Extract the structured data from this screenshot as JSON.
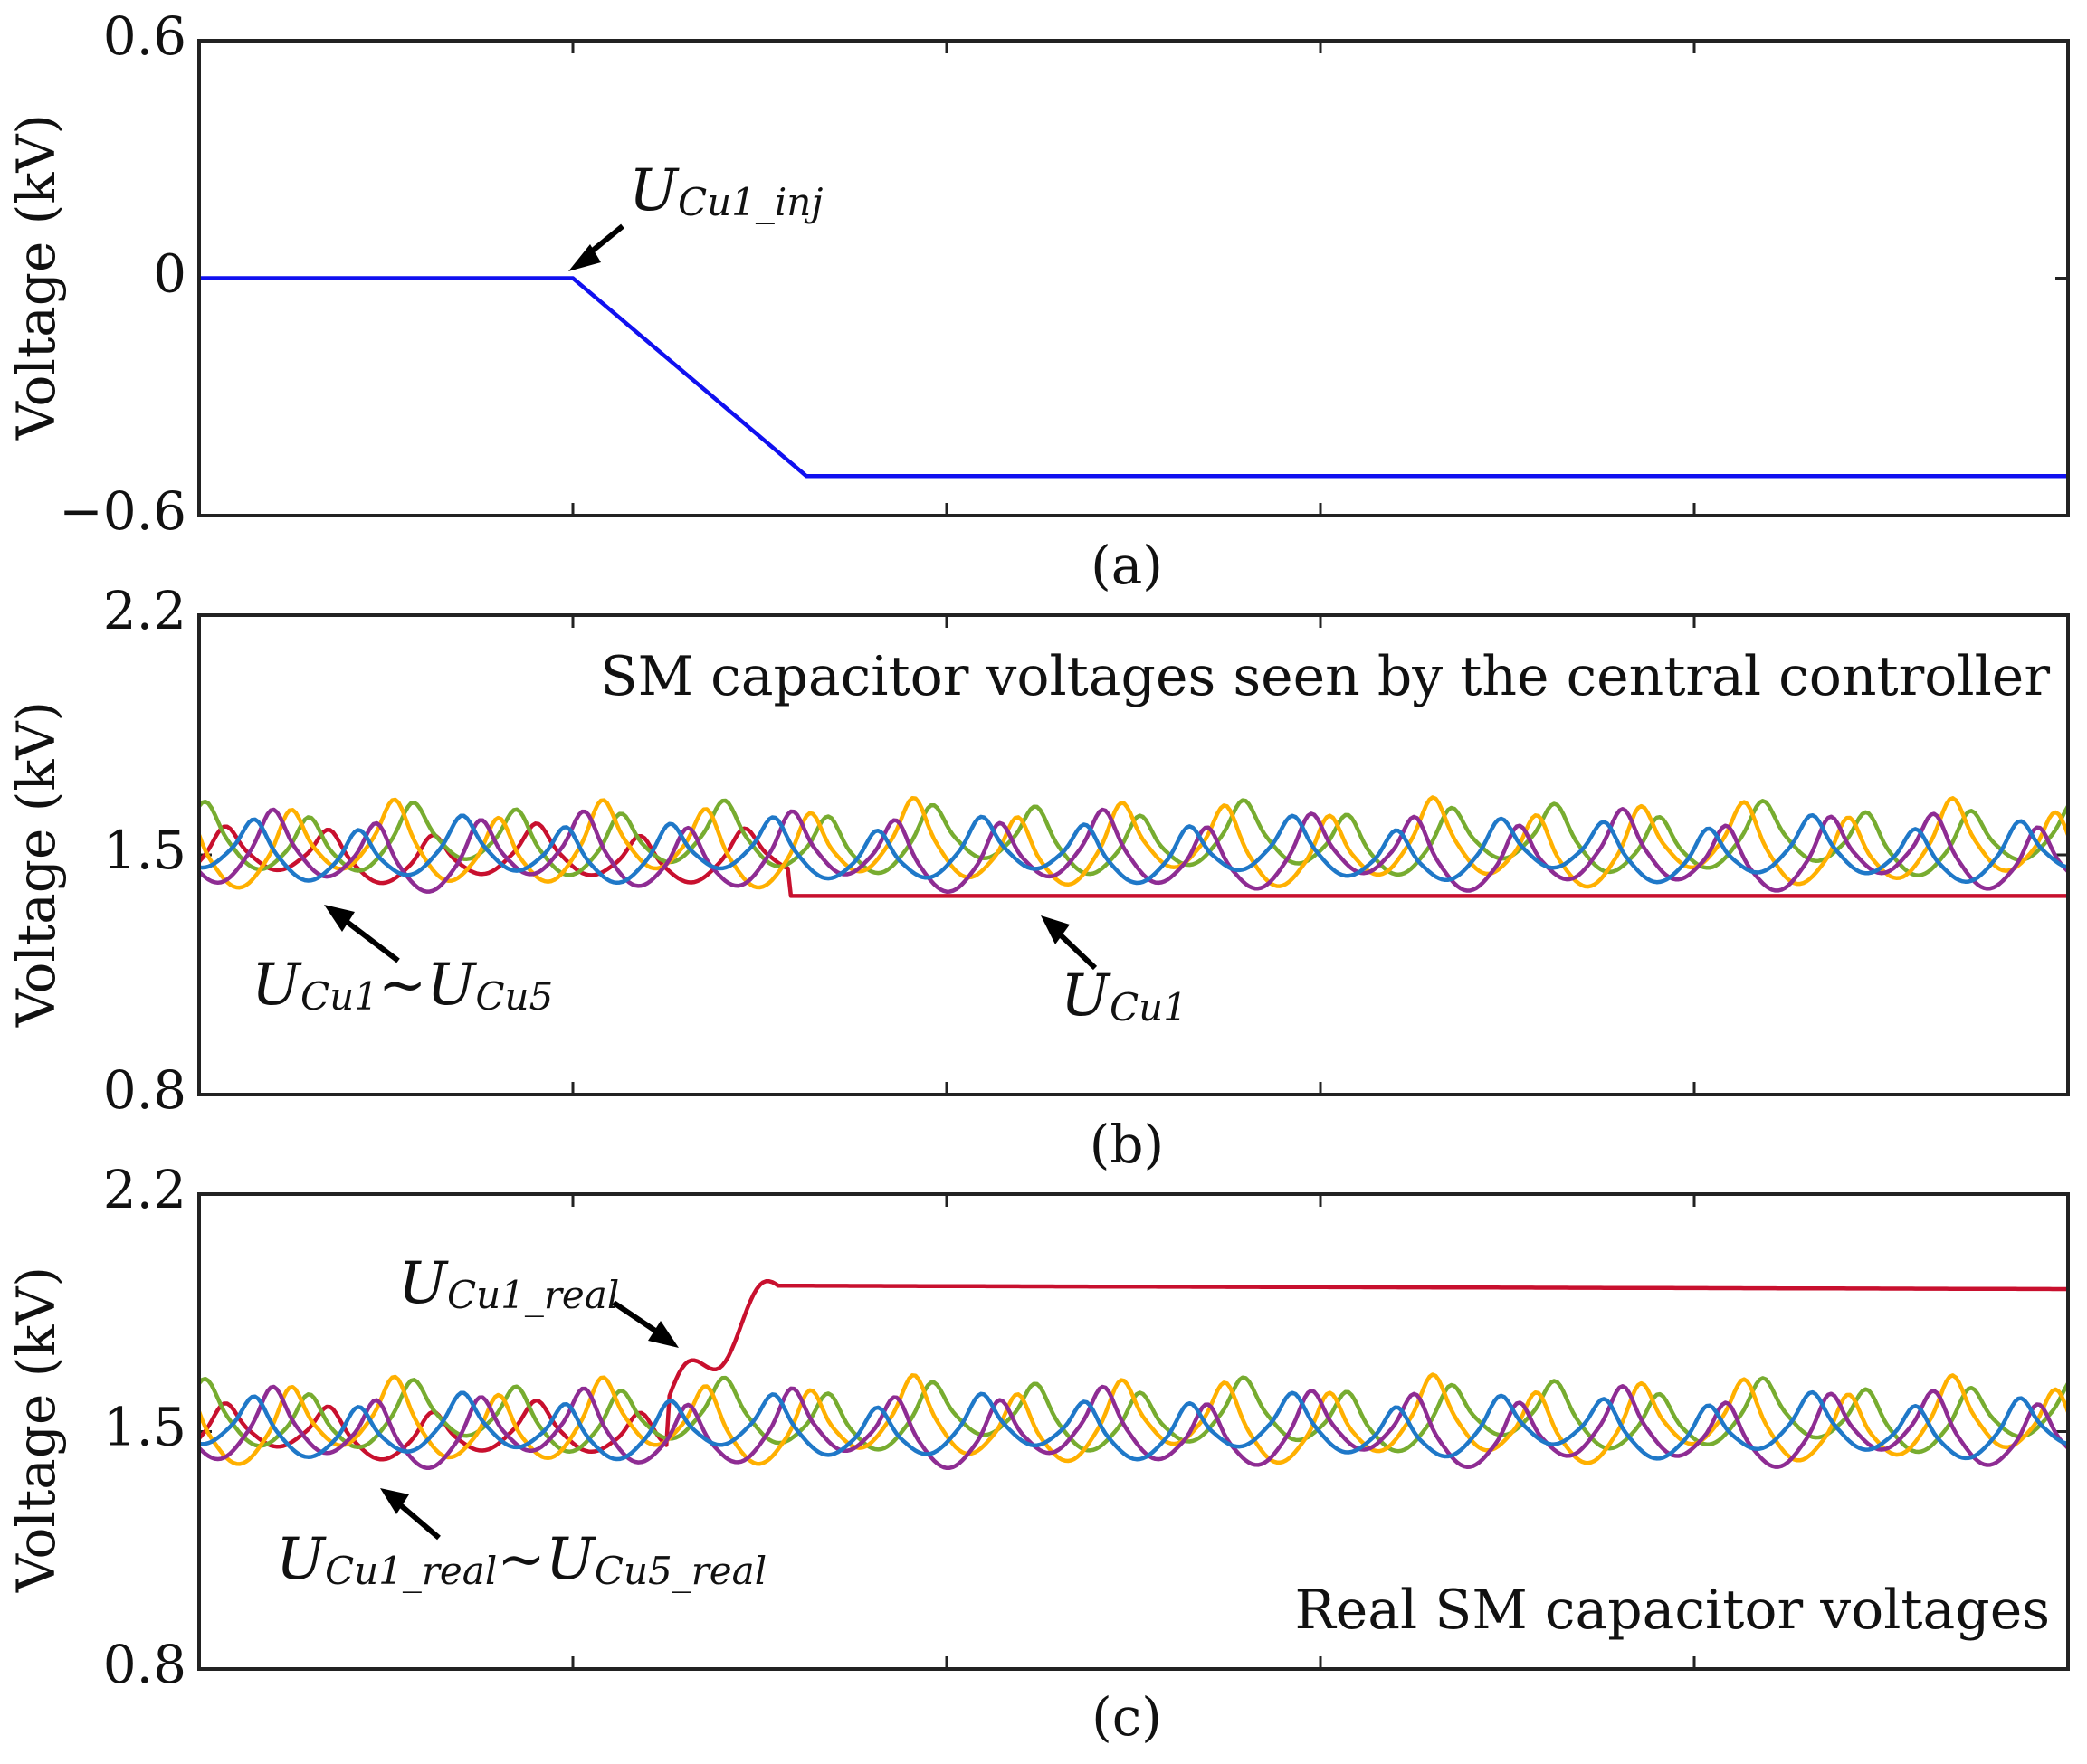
{
  "chart_data": [
    {
      "type": "line",
      "caption": "(a)",
      "ylabel": "Voltage (kV)",
      "ylim": [
        -0.6,
        0.6
      ],
      "yticks": [
        -0.6,
        0,
        0.6
      ],
      "ytick_labels": [
        "−0.6",
        "0",
        "0.6"
      ],
      "xlim": [
        0,
        1
      ],
      "xticks": [
        0.2,
        0.4,
        0.6,
        0.8
      ],
      "series": [
        {
          "name": "U_Cu1_inj",
          "color": "#1010f0",
          "x": [
            0,
            0.2,
            0.325,
            1.0
          ],
          "y": [
            0,
            0,
            -0.5,
            -0.5
          ]
        }
      ],
      "annotations": [
        {
          "main": "U",
          "sub": "Cu1_inj"
        }
      ]
    },
    {
      "type": "line",
      "caption": "(b)",
      "title": "SM capacitor voltages seen by the central controller",
      "ylabel": "Voltage (kV)",
      "ylim": [
        0.8,
        2.2
      ],
      "yticks": [
        0.8,
        1.5,
        2.2
      ],
      "ytick_labels": [
        "0.8",
        "1.5",
        "2.2"
      ],
      "xlim": [
        0,
        1
      ],
      "xticks": [
        0.2,
        0.4,
        0.6,
        0.8
      ],
      "approx_range": {
        "min": 1.38,
        "max": 1.74
      },
      "series": [
        {
          "name": "U_Cu1",
          "color": "#c8102e",
          "base": 1.48,
          "amp": 0.08,
          "phase": 0.0,
          "settle_after_x": 0.315,
          "settle_value": 1.38
        },
        {
          "name": "U_Cu2",
          "color": "#77ac30",
          "base": 1.52,
          "amp": 0.1,
          "phase": 1.2
        },
        {
          "name": "U_Cu3",
          "color": "#ffb000",
          "base": 1.5,
          "amp": 0.12,
          "phase": 2.3
        },
        {
          "name": "U_Cu4",
          "color": "#8e2c93",
          "base": 1.48,
          "amp": 0.11,
          "phase": 3.4
        },
        {
          "name": "U_Cu5",
          "color": "#1f78c8",
          "base": 1.49,
          "amp": 0.09,
          "phase": 4.5
        }
      ],
      "annotations": [
        {
          "main1": "U",
          "sub1": "Cu1",
          "sep": "~",
          "main2": "U",
          "sub2": "Cu5"
        },
        {
          "main": "U",
          "sub": "Cu1"
        }
      ]
    },
    {
      "type": "line",
      "caption": "(c)",
      "title": "Real SM capacitor voltages",
      "ylabel": "Voltage (kV)",
      "ylim": [
        0.8,
        2.2
      ],
      "yticks": [
        0.8,
        1.5,
        2.2
      ],
      "ytick_labels": [
        "0.8",
        "1.5",
        "2.2"
      ],
      "xlim": [
        0,
        1
      ],
      "xticks": [
        0.2,
        0.4,
        0.6,
        0.8
      ],
      "approx_range": {
        "min": 1.38,
        "max": 1.93
      },
      "series": [
        {
          "name": "U_Cu1_real",
          "color": "#c8102e",
          "base": 1.48,
          "amp": 0.08,
          "phase": 0.0,
          "rise_x": [
            0.25,
            0.31
          ],
          "rise_values": [
            1.58,
            1.82,
            1.93
          ],
          "final": 1.92
        },
        {
          "name": "U_Cu2_real",
          "color": "#77ac30",
          "base": 1.52,
          "amp": 0.1,
          "phase": 1.2
        },
        {
          "name": "U_Cu3_real",
          "color": "#ffb000",
          "base": 1.5,
          "amp": 0.12,
          "phase": 2.3
        },
        {
          "name": "U_Cu4_real",
          "color": "#8e2c93",
          "base": 1.48,
          "amp": 0.11,
          "phase": 3.4
        },
        {
          "name": "U_Cu5_real",
          "color": "#1f78c8",
          "base": 1.49,
          "amp": 0.09,
          "phase": 4.5
        }
      ],
      "annotations": [
        {
          "main": "U",
          "sub": "Cu1_real"
        },
        {
          "main1": "U",
          "sub1": "Cu1_real",
          "sep": "~",
          "main2": "U",
          "sub2": "Cu5_real"
        }
      ]
    }
  ]
}
